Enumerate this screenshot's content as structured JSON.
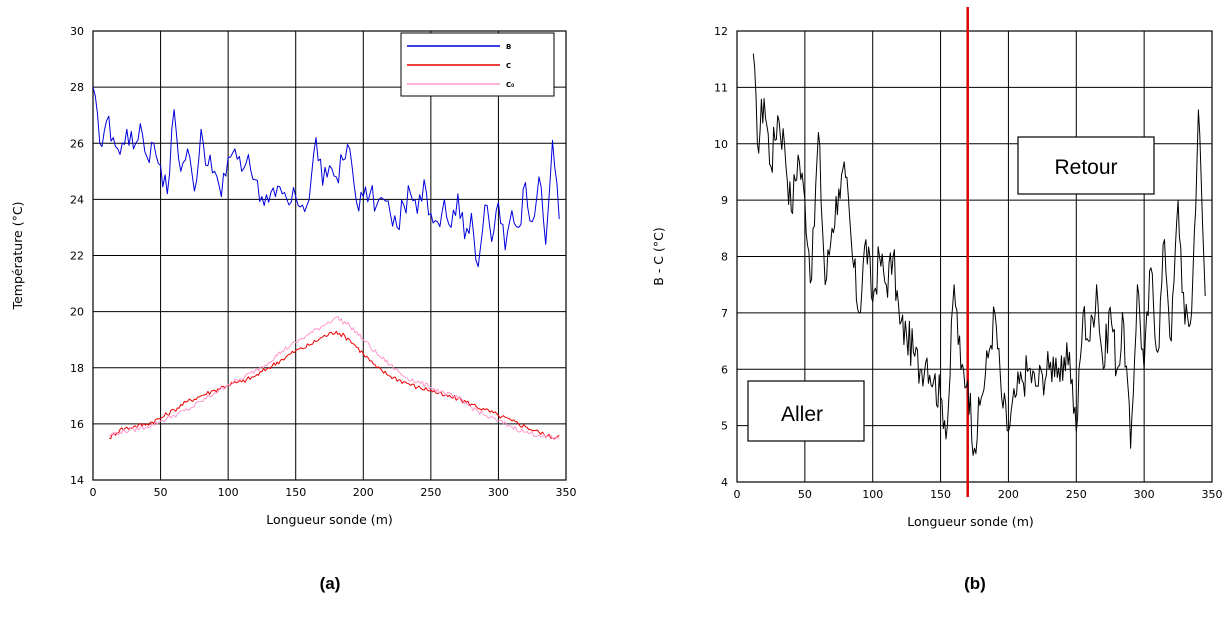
{
  "panels": [
    {
      "label": "(a)"
    },
    {
      "label": "(b)"
    }
  ],
  "chart_data": [
    {
      "type": "line",
      "xlabel": "Longueur sonde (m)",
      "ylabel": "Température (°C)",
      "xlim": [
        0,
        350
      ],
      "ylim": [
        14,
        30
      ],
      "xticks": [
        0,
        50,
        100,
        150,
        200,
        250,
        300,
        350
      ],
      "yticks": [
        14,
        16,
        18,
        20,
        22,
        24,
        26,
        28,
        30
      ],
      "grid": true,
      "legend": {
        "placement": "top-right"
      },
      "series": [
        {
          "name": "B",
          "color": "#0000dd",
          "x": [
            0,
            5,
            10,
            15,
            20,
            25,
            30,
            35,
            40,
            45,
            50,
            55,
            60,
            65,
            70,
            75,
            80,
            85,
            90,
            95,
            100,
            105,
            110,
            115,
            120,
            125,
            130,
            135,
            140,
            145,
            150,
            155,
            160,
            165,
            170,
            175,
            180,
            185,
            190,
            195,
            200,
            205,
            210,
            215,
            220,
            225,
            230,
            235,
            240,
            245,
            250,
            255,
            260,
            265,
            270,
            275,
            280,
            285,
            290,
            295,
            300,
            305,
            310,
            315,
            320,
            325,
            330,
            335,
            340,
            345
          ],
          "values": [
            28.0,
            26.0,
            26.8,
            26.2,
            25.6,
            26.5,
            25.8,
            26.7,
            25.5,
            26.0,
            25.2,
            24.2,
            27.2,
            25.0,
            25.8,
            24.3,
            26.5,
            25.2,
            25.0,
            24.1,
            25.5,
            25.8,
            25.0,
            25.6,
            24.7,
            24.1,
            23.9,
            24.1,
            24.2,
            23.8,
            24.1,
            23.8,
            24.0,
            26.2,
            24.5,
            25.2,
            24.8,
            25.4,
            25.8,
            23.9,
            24.1,
            24.2,
            23.8,
            24.0,
            23.5,
            23.0,
            23.8,
            24.2,
            23.5,
            24.7,
            23.5,
            23.2,
            24.0,
            23.0,
            24.2,
            22.6,
            23.5,
            21.6,
            23.8,
            22.5,
            23.9,
            22.2,
            23.6,
            23.0,
            24.6,
            23.2,
            24.8,
            22.4,
            26.1,
            23.3
          ]
        },
        {
          "name": "C",
          "color": "#ee0000",
          "x": [
            12,
            20,
            30,
            40,
            50,
            60,
            70,
            80,
            90,
            100,
            110,
            120,
            130,
            140,
            150,
            160,
            170,
            180,
            190,
            200,
            210,
            220,
            230,
            240,
            250,
            260,
            270,
            280,
            290,
            300,
            310,
            320,
            330,
            340,
            345
          ],
          "values": [
            15.5,
            15.8,
            15.9,
            16.0,
            16.2,
            16.5,
            16.8,
            17.0,
            17.2,
            17.4,
            17.5,
            17.7,
            18.0,
            18.3,
            18.6,
            18.8,
            19.1,
            19.3,
            19.0,
            18.5,
            18.0,
            17.7,
            17.5,
            17.3,
            17.2,
            17.0,
            16.9,
            16.7,
            16.5,
            16.3,
            16.1,
            15.9,
            15.7,
            15.5,
            15.6
          ]
        },
        {
          "name": "C₀",
          "color": "#ff99cc",
          "x": [
            12,
            20,
            30,
            40,
            50,
            60,
            70,
            80,
            90,
            100,
            110,
            120,
            130,
            140,
            150,
            160,
            170,
            180,
            190,
            200,
            210,
            220,
            230,
            240,
            250,
            260,
            270,
            280,
            290,
            300,
            310,
            320,
            330,
            340,
            345
          ],
          "values": [
            15.6,
            15.7,
            15.8,
            15.9,
            16.1,
            16.3,
            16.5,
            16.8,
            17.1,
            17.4,
            17.6,
            17.9,
            18.2,
            18.6,
            18.9,
            19.2,
            19.5,
            19.8,
            19.5,
            19.0,
            18.5,
            18.1,
            17.7,
            17.5,
            17.3,
            17.1,
            16.9,
            16.6,
            16.3,
            16.1,
            15.9,
            15.7,
            15.6,
            15.5,
            15.5
          ]
        }
      ]
    },
    {
      "type": "line",
      "xlabel": "Longueur sonde (m)",
      "ylabel": "B - C (°C)",
      "xlim": [
        0,
        350
      ],
      "ylim": [
        4,
        12
      ],
      "xticks": [
        0,
        50,
        100,
        150,
        200,
        250,
        300,
        350
      ],
      "yticks": [
        4,
        5,
        6,
        7,
        8,
        9,
        10,
        11,
        12
      ],
      "grid": true,
      "vline": {
        "x": 170,
        "color": "#dd0000"
      },
      "annotations": [
        {
          "text": "Retour",
          "placement": "upper-right"
        },
        {
          "text": "Aller",
          "placement": "lower-left"
        }
      ],
      "series": [
        {
          "name": "",
          "color": "#000000",
          "x": [
            12,
            15,
            20,
            25,
            30,
            35,
            40,
            45,
            50,
            55,
            60,
            65,
            70,
            75,
            80,
            85,
            90,
            95,
            100,
            105,
            110,
            115,
            120,
            125,
            130,
            135,
            140,
            145,
            150,
            155,
            160,
            165,
            170,
            175,
            180,
            185,
            190,
            195,
            200,
            205,
            210,
            215,
            220,
            225,
            230,
            235,
            240,
            245,
            250,
            255,
            260,
            265,
            270,
            275,
            280,
            285,
            290,
            295,
            300,
            305,
            310,
            315,
            320,
            325,
            330,
            335,
            340,
            345
          ],
          "values": [
            11.6,
            10.0,
            10.8,
            9.6,
            10.5,
            10.0,
            8.8,
            9.8,
            9.0,
            7.6,
            10.2,
            7.5,
            8.5,
            9.2,
            9.4,
            8.0,
            7.0,
            8.3,
            7.2,
            8.0,
            7.5,
            8.0,
            6.8,
            6.6,
            6.3,
            6.0,
            6.2,
            5.8,
            5.5,
            5.0,
            7.5,
            6.0,
            5.8,
            4.6,
            5.5,
            6.2,
            7.0,
            5.5,
            4.9,
            5.5,
            5.8,
            6.0,
            5.7,
            5.9,
            6.0,
            6.2,
            5.8,
            6.3,
            4.9,
            7.0,
            6.5,
            7.5,
            6.0,
            7.1,
            6.0,
            6.8,
            4.6,
            7.5,
            6.0,
            7.8,
            6.3,
            8.3,
            6.5,
            9.0,
            6.8,
            7.0,
            10.6,
            7.3
          ]
        }
      ]
    }
  ]
}
